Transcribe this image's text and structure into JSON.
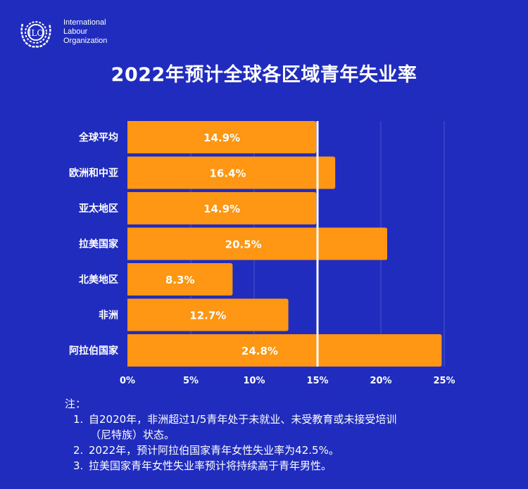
{
  "header": {
    "org_name_lines": [
      "International",
      "Labour",
      "Organization"
    ],
    "logo_text": "ILO",
    "title": "2022年预计全球各区域青年失业率"
  },
  "colors": {
    "background": "#1f2cbd",
    "bar": "#ff9614",
    "reference_line": "#ffffff",
    "text": "#ffffff",
    "gridline": "#4a56cc"
  },
  "chart_data": {
    "type": "bar",
    "orientation": "horizontal",
    "title": "2022年预计全球各区域青年失业率",
    "xlabel": "",
    "ylabel": "",
    "categories": [
      "全球平均",
      "欧洲和中亚",
      "亚太地区",
      "拉美国家",
      "北美地区",
      "非洲",
      "阿拉伯国家"
    ],
    "values": [
      14.9,
      16.4,
      14.9,
      20.5,
      8.3,
      12.7,
      24.8
    ],
    "value_labels": [
      "14.9%",
      "16.4%",
      "14.9%",
      "20.5%",
      "8.3%",
      "12.7%",
      "24.8%"
    ],
    "unit": "%",
    "xlim": [
      0,
      25
    ],
    "xticks": [
      0,
      5,
      10,
      15,
      20,
      25
    ],
    "xtick_labels": [
      "0%",
      "5%",
      "10%",
      "15%",
      "20%",
      "25%"
    ],
    "reference_line": 15,
    "grid": true,
    "legend": "none"
  },
  "notes": {
    "heading": "注：",
    "items": [
      {
        "num": "1.",
        "text": "自2020年，非洲超过1/5青年处于未就业、未受教育或未接受培训",
        "cont": "（尼特族）状态。"
      },
      {
        "num": "2.",
        "text": "2022年，预计阿拉伯国家青年女性失业率为42.5%。"
      },
      {
        "num": "3.",
        "text": "拉美国家青年女性失业率预计将持续高于青年男性。"
      }
    ]
  }
}
